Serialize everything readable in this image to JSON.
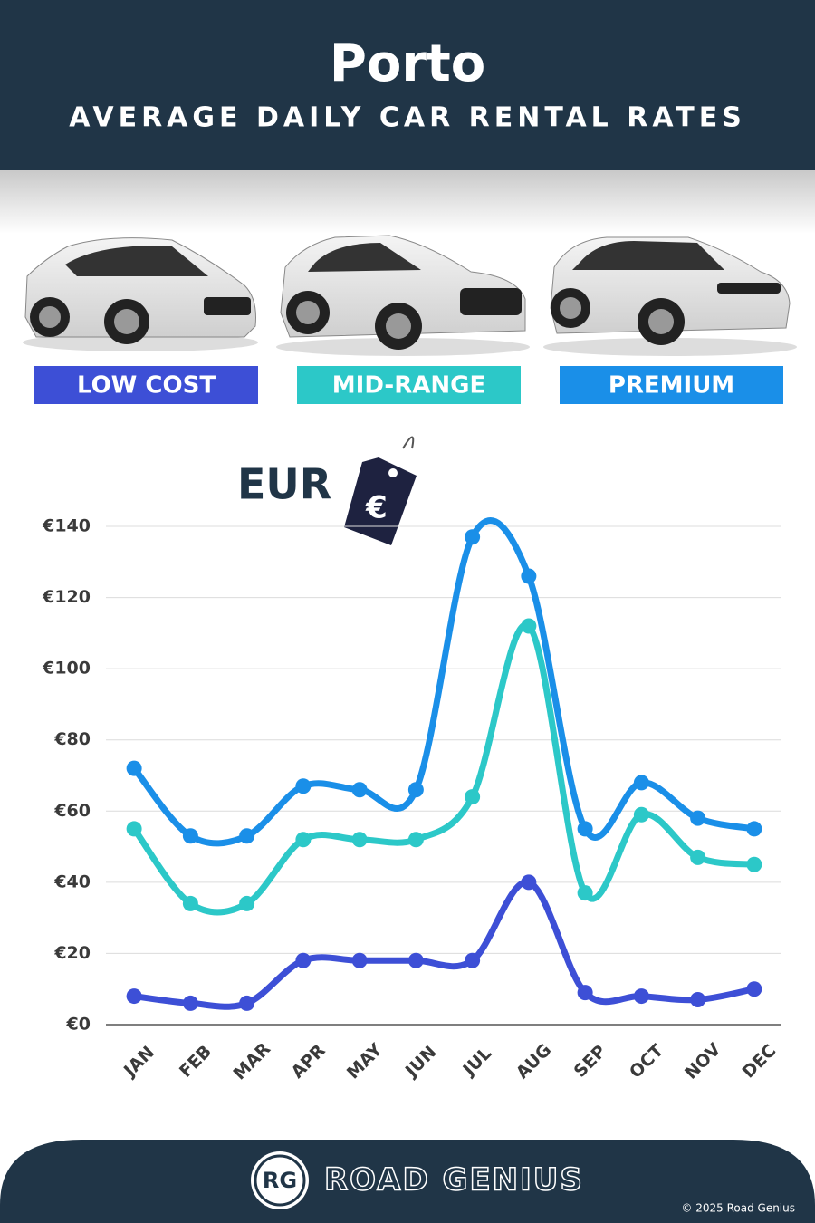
{
  "header": {
    "title": "Porto",
    "subtitle": "AVERAGE DAILY CAR RENTAL RATES"
  },
  "chart_data": {
    "type": "line",
    "unit_label": "EUR",
    "tag_symbol": "€",
    "categories": [
      "JAN",
      "FEB",
      "MAR",
      "APR",
      "MAY",
      "JUN",
      "JUL",
      "AUG",
      "SEP",
      "OCT",
      "NOV",
      "DEC"
    ],
    "series": [
      {
        "name": "LOW COST",
        "color": "#3d4fd6",
        "values": [
          8,
          6,
          6,
          18,
          18,
          18,
          18,
          40,
          9,
          8,
          7,
          10
        ]
      },
      {
        "name": "MID-RANGE",
        "color": "#2cc8c8",
        "values": [
          55,
          34,
          34,
          52,
          52,
          52,
          64,
          112,
          37,
          59,
          47,
          45
        ]
      },
      {
        "name": "PREMIUM",
        "color": "#1a8fe8",
        "values": [
          72,
          53,
          53,
          67,
          66,
          66,
          137,
          126,
          55,
          68,
          58,
          55
        ]
      }
    ],
    "ylim": [
      0,
      140
    ],
    "yticks": [
      {
        "value": 0,
        "label": "€0"
      },
      {
        "value": 20,
        "label": "€20"
      },
      {
        "value": 40,
        "label": "€40"
      },
      {
        "value": 60,
        "label": "€60"
      },
      {
        "value": 80,
        "label": "€80"
      },
      {
        "value": 100,
        "label": "€100"
      },
      {
        "value": 120,
        "label": "€120"
      },
      {
        "value": 140,
        "label": "€140"
      }
    ],
    "grid": true
  },
  "footer": {
    "logo": "RG",
    "brand": "ROAD GENIUS",
    "copyright": "© 2025 Road Genius"
  }
}
